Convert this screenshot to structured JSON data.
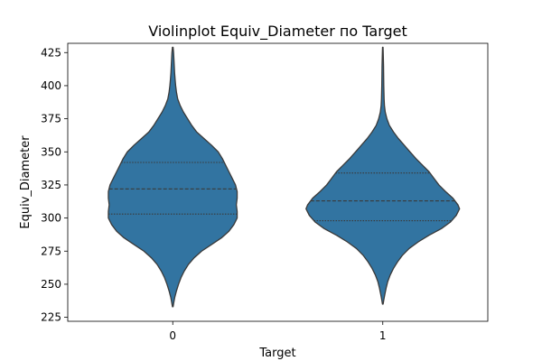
{
  "chart_data": {
    "type": "violin",
    "title": "Violinplot Equiv_Diameter по Target",
    "xlabel": "Target",
    "ylabel": "Equiv_Diameter",
    "categories": [
      "0",
      "1"
    ],
    "ylim": [
      222,
      432
    ],
    "yticks": [
      225,
      250,
      275,
      300,
      325,
      350,
      375,
      400,
      425
    ],
    "grid": false,
    "legend": false,
    "fill_color": "#3274a1",
    "edge_color": "#3a3a3a",
    "violins": [
      {
        "category": "0",
        "min": 233,
        "max": 429,
        "quartiles": [
          303,
          322,
          342
        ],
        "profile": [
          [
            233,
            0.4
          ],
          [
            236,
            1.2
          ],
          [
            240,
            2.4
          ],
          [
            245,
            4.5
          ],
          [
            250,
            7
          ],
          [
            255,
            10
          ],
          [
            260,
            14
          ],
          [
            265,
            19
          ],
          [
            270,
            26
          ],
          [
            275,
            35
          ],
          [
            280,
            47
          ],
          [
            285,
            59
          ],
          [
            290,
            68
          ],
          [
            295,
            74
          ],
          [
            300,
            78
          ],
          [
            305,
            78
          ],
          [
            310,
            77
          ],
          [
            315,
            78
          ],
          [
            320,
            78
          ],
          [
            325,
            76
          ],
          [
            330,
            72
          ],
          [
            335,
            68
          ],
          [
            340,
            64
          ],
          [
            345,
            60
          ],
          [
            350,
            55
          ],
          [
            355,
            47
          ],
          [
            360,
            38
          ],
          [
            365,
            29
          ],
          [
            370,
            23
          ],
          [
            375,
            18
          ],
          [
            380,
            13
          ],
          [
            385,
            9
          ],
          [
            390,
            6
          ],
          [
            395,
            4.5
          ],
          [
            400,
            3.5
          ],
          [
            405,
            2.8
          ],
          [
            410,
            2.2
          ],
          [
            415,
            1.8
          ],
          [
            420,
            1.4
          ],
          [
            425,
            1
          ],
          [
            429,
            0.4
          ]
        ]
      },
      {
        "category": "1",
        "min": 235,
        "max": 429,
        "quartiles": [
          298,
          313,
          334
        ],
        "profile": [
          [
            235,
            0.4
          ],
          [
            238,
            1.2
          ],
          [
            242,
            2.4
          ],
          [
            247,
            4
          ],
          [
            252,
            6
          ],
          [
            257,
            9
          ],
          [
            262,
            13
          ],
          [
            267,
            18
          ],
          [
            272,
            24
          ],
          [
            277,
            32
          ],
          [
            282,
            43
          ],
          [
            287,
            56
          ],
          [
            292,
            71
          ],
          [
            297,
            82
          ],
          [
            302,
            89
          ],
          [
            307,
            93
          ],
          [
            310,
            91
          ],
          [
            315,
            85
          ],
          [
            320,
            76
          ],
          [
            325,
            68
          ],
          [
            330,
            62
          ],
          [
            335,
            56
          ],
          [
            340,
            48
          ],
          [
            345,
            40
          ],
          [
            350,
            33
          ],
          [
            355,
            26
          ],
          [
            360,
            19
          ],
          [
            365,
            13
          ],
          [
            370,
            8
          ],
          [
            375,
            5
          ],
          [
            380,
            3
          ],
          [
            385,
            2
          ],
          [
            390,
            1.6
          ],
          [
            395,
            1.4
          ],
          [
            400,
            1.2
          ],
          [
            405,
            1.1
          ],
          [
            410,
            1
          ],
          [
            415,
            0.9
          ],
          [
            420,
            0.7
          ],
          [
            425,
            0.5
          ],
          [
            429,
            0.3
          ]
        ]
      }
    ]
  }
}
